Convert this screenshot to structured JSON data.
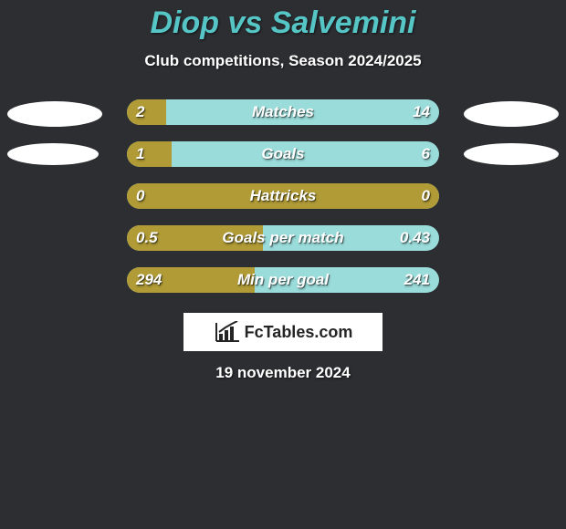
{
  "background_color": "#2d2e32",
  "title": "Diop vs Salvemini",
  "title_color": "#56c5c6",
  "title_fontsize": 34,
  "subtitle": "Club competitions, Season 2024/2025",
  "subtitle_color": "#ffffff",
  "subtitle_fontsize": 17,
  "bar": {
    "track_width": 342,
    "track_height": 28,
    "left_color": "#b09b36",
    "right_color": "#9adcda",
    "text_color": "#ffffff",
    "label_fontsize": 17
  },
  "badge": {
    "row0": {
      "left_w": 104,
      "left_h": 28,
      "right_w": 104,
      "right_h": 28
    },
    "default": {
      "left_w": 100,
      "left_h": 24,
      "right_w": 104,
      "right_h": 24
    }
  },
  "rows": [
    {
      "label": "Matches",
      "lval": "2",
      "rval": "14",
      "lnum": 2,
      "rnum": 14,
      "show_badges": true
    },
    {
      "label": "Goals",
      "lval": "1",
      "rval": "6",
      "lnum": 1,
      "rnum": 6,
      "show_badges": true
    },
    {
      "label": "Hattricks",
      "lval": "0",
      "rval": "0",
      "lnum": 0,
      "rnum": 0,
      "show_badges": false
    },
    {
      "label": "Goals per match",
      "lval": "0.5",
      "rval": "0.43",
      "lnum": 0.5,
      "rnum": 0.43,
      "show_badges": false
    },
    {
      "label": "Min per goal",
      "lval": "294",
      "rval": "241",
      "lnum": 294,
      "rnum": 241,
      "show_badges": false
    }
  ],
  "split_overrides": {
    "2": 100,
    "3": 43.5,
    "4": 41
  },
  "brand": {
    "text": "FcTables.com",
    "bg": "#ffffff",
    "fg": "#242424"
  },
  "date": "19 november 2024"
}
